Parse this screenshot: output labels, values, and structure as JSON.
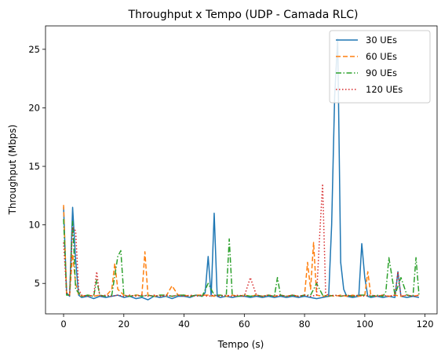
{
  "chart_data": {
    "type": "line",
    "title": "Throughput x Tempo (UDP - Camada RLC)",
    "xlabel": "Tempo (s)",
    "ylabel": "Throughput (Mbps)",
    "xlim": [
      -6,
      124
    ],
    "ylim": [
      2.4,
      27.0
    ],
    "xticks": [
      0,
      20,
      40,
      60,
      80,
      100,
      120
    ],
    "yticks": [
      5,
      10,
      15,
      20,
      25
    ],
    "grid": false,
    "legend_position": "top-right",
    "series": [
      {
        "name": "30 UEs",
        "color": "#1f77b4",
        "dash": "solid",
        "x": [
          0,
          1,
          2,
          3,
          4,
          5,
          6,
          8,
          10,
          12,
          14,
          16,
          18,
          20,
          22,
          24,
          26,
          28,
          30,
          32,
          34,
          36,
          38,
          40,
          42,
          44,
          46,
          47,
          48,
          49,
          50,
          51,
          52,
          54,
          56,
          58,
          60,
          62,
          64,
          66,
          68,
          70,
          72,
          74,
          76,
          78,
          80,
          82,
          84,
          86,
          88,
          89,
          90,
          91,
          92,
          93,
          94,
          96,
          98,
          99,
          100,
          101,
          102,
          104,
          106,
          108,
          110,
          111,
          112,
          114,
          116,
          118
        ],
        "y": [
          11.5,
          4.2,
          3.9,
          11.5,
          7.0,
          4.0,
          3.8,
          3.9,
          3.7,
          3.9,
          3.8,
          3.9,
          4.0,
          3.8,
          3.9,
          3.7,
          3.8,
          3.6,
          3.9,
          3.8,
          3.9,
          3.7,
          3.9,
          3.9,
          3.8,
          4.0,
          3.9,
          4.2,
          7.3,
          3.9,
          11.0,
          3.9,
          3.8,
          3.9,
          3.8,
          3.9,
          3.9,
          3.8,
          3.9,
          3.8,
          3.9,
          3.8,
          3.9,
          3.8,
          3.9,
          3.8,
          3.9,
          3.8,
          3.7,
          3.8,
          3.9,
          10.0,
          21.0,
          25.9,
          6.8,
          4.5,
          3.9,
          3.8,
          3.9,
          8.4,
          5.5,
          3.9,
          3.8,
          3.9,
          3.8,
          3.9,
          3.8,
          6.0,
          3.9,
          3.8,
          3.9,
          3.8
        ]
      },
      {
        "name": "60 UEs",
        "color": "#ff7f0e",
        "dash": "dashed",
        "x": [
          0,
          1,
          2,
          3,
          4,
          5,
          6,
          8,
          10,
          12,
          14,
          16,
          17,
          18,
          20,
          22,
          24,
          26,
          27,
          28,
          30,
          32,
          34,
          36,
          38,
          40,
          42,
          44,
          46,
          48,
          50,
          52,
          54,
          56,
          58,
          60,
          62,
          64,
          66,
          68,
          70,
          72,
          74,
          76,
          78,
          80,
          81,
          82,
          83,
          84,
          86,
          88,
          90,
          92,
          94,
          96,
          98,
          100,
          101,
          102,
          104,
          106,
          108,
          110,
          112,
          114,
          116,
          118
        ],
        "y": [
          11.7,
          4.1,
          4.0,
          7.5,
          5.0,
          4.0,
          3.9,
          4.0,
          3.9,
          4.0,
          3.9,
          4.5,
          6.7,
          4.5,
          4.0,
          3.9,
          4.0,
          4.0,
          7.7,
          4.0,
          3.9,
          4.0,
          3.9,
          4.8,
          4.0,
          4.0,
          3.9,
          4.0,
          4.0,
          4.0,
          3.9,
          4.0,
          3.9,
          4.0,
          3.9,
          4.0,
          3.9,
          4.0,
          3.9,
          4.0,
          3.9,
          4.0,
          3.9,
          4.0,
          3.9,
          4.0,
          6.8,
          4.5,
          8.5,
          4.0,
          3.9,
          4.0,
          3.9,
          4.0,
          3.9,
          4.0,
          3.9,
          4.0,
          6.0,
          4.0,
          3.9,
          4.0,
          3.9,
          4.0,
          3.9,
          4.0,
          3.9,
          4.0
        ]
      },
      {
        "name": "90 UEs",
        "color": "#2ca02c",
        "dash": "dashdot",
        "x": [
          0,
          1,
          2,
          3,
          4,
          5,
          6,
          8,
          10,
          11,
          12,
          14,
          16,
          18,
          19,
          20,
          22,
          24,
          26,
          28,
          30,
          32,
          34,
          36,
          38,
          40,
          42,
          44,
          46,
          48,
          50,
          52,
          54,
          55,
          56,
          58,
          60,
          62,
          64,
          66,
          68,
          70,
          71,
          72,
          74,
          76,
          78,
          80,
          82,
          84,
          86,
          88,
          90,
          92,
          94,
          96,
          98,
          100,
          102,
          104,
          106,
          107,
          108,
          110,
          112,
          114,
          116,
          117,
          118
        ],
        "y": [
          10.5,
          4.0,
          4.0,
          10.3,
          4.5,
          4.2,
          3.9,
          4.0,
          3.9,
          5.3,
          4.0,
          3.9,
          4.0,
          7.3,
          7.8,
          4.0,
          3.9,
          4.0,
          3.9,
          4.0,
          3.9,
          4.0,
          4.0,
          3.9,
          4.0,
          4.0,
          3.9,
          4.0,
          3.9,
          5.0,
          4.0,
          4.0,
          3.9,
          8.8,
          4.0,
          3.9,
          4.0,
          3.9,
          4.0,
          3.9,
          4.0,
          3.9,
          5.5,
          4.0,
          3.9,
          4.0,
          3.9,
          4.0,
          4.0,
          5.0,
          4.0,
          3.9,
          4.0,
          3.9,
          4.0,
          3.9,
          4.0,
          4.0,
          3.9,
          4.0,
          3.9,
          4.3,
          7.2,
          4.0,
          5.5,
          4.0,
          3.9,
          7.2,
          4.0
        ]
      },
      {
        "name": "120 UEs",
        "color": "#d62728",
        "dash": "dotted",
        "x": [
          0,
          1,
          2,
          3,
          4,
          5,
          6,
          8,
          10,
          11,
          12,
          14,
          16,
          18,
          20,
          22,
          24,
          26,
          28,
          30,
          32,
          34,
          36,
          38,
          40,
          42,
          44,
          46,
          48,
          50,
          52,
          54,
          56,
          58,
          60,
          62,
          64,
          66,
          68,
          70,
          72,
          74,
          76,
          78,
          80,
          82,
          84,
          85,
          86,
          87,
          88,
          90,
          92,
          94,
          96,
          98,
          100,
          102,
          104,
          106,
          108,
          110,
          111,
          112,
          114,
          116,
          118
        ],
        "y": [
          8.5,
          4.2,
          4.0,
          9.8,
          9.5,
          4.5,
          4.0,
          3.9,
          4.0,
          6.0,
          3.9,
          4.0,
          3.9,
          4.0,
          3.9,
          4.0,
          3.9,
          4.0,
          3.9,
          4.0,
          3.9,
          4.0,
          3.9,
          4.0,
          3.9,
          4.0,
          3.9,
          4.0,
          3.9,
          4.0,
          3.9,
          4.0,
          3.9,
          4.0,
          3.9,
          5.5,
          4.0,
          3.9,
          4.0,
          3.9,
          4.0,
          3.9,
          4.0,
          3.9,
          4.0,
          3.9,
          4.0,
          9.0,
          13.5,
          4.2,
          3.9,
          4.0,
          3.9,
          4.0,
          3.9,
          4.0,
          3.9,
          4.0,
          3.9,
          4.0,
          3.9,
          4.0,
          6.0,
          3.9,
          4.0,
          3.9,
          4.0
        ]
      }
    ]
  }
}
